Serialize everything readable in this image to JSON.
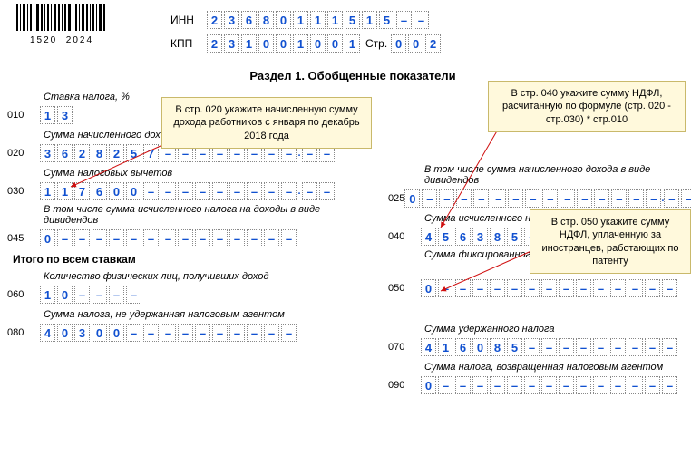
{
  "barcode": {
    "num_left": "1520",
    "num_right": "2024"
  },
  "header": {
    "inn_label": "ИНН",
    "kpp_label": "КПП",
    "str_label": "Стр.",
    "inn": [
      "2",
      "3",
      "6",
      "8",
      "0",
      "1",
      "1",
      "1",
      "5",
      "1",
      "5",
      "–",
      "–"
    ],
    "kpp": [
      "2",
      "3",
      "1",
      "0",
      "0",
      "1",
      "0",
      "0",
      "1"
    ],
    "page": [
      "0",
      "0",
      "2"
    ]
  },
  "section_title": "Раздел 1. Обобщенные показатели",
  "labels": {
    "rate": "Ставка налога, %",
    "l020": "Сумма начисленного дохода",
    "l025": "В том числе сумма начисленного дохода в виде дивидендов",
    "l030": "Сумма налоговых вычетов",
    "l040": "Сумма исчисленного налога",
    "l045": "В том числе сумма исчисленного налога на доходы в виде дивидендов",
    "l050": "Сумма фиксированного авансового платежа",
    "total": "Итого по всем ставкам",
    "l060": "Количество физических лиц, получивших доход",
    "l070": "Сумма удержанного налога",
    "l080": "Сумма налога, не удержанная налоговым агентом",
    "l090": "Сумма налога, возвращенная налоговым агентом"
  },
  "lines": {
    "n010": "010",
    "n020": "020",
    "n025": "025",
    "n030": "030",
    "n040": "040",
    "n045": "045",
    "n050": "050",
    "n060": "060",
    "n070": "070",
    "n080": "080",
    "n090": "090"
  },
  "values": {
    "v010": [
      "1",
      "3"
    ],
    "v020_int": [
      "3",
      "6",
      "2",
      "8",
      "2",
      "5",
      "7",
      "–",
      "–",
      "–",
      "–",
      "–",
      "–",
      "–",
      "–"
    ],
    "v020_dec": [
      "–",
      "–"
    ],
    "v025_int": [
      "0",
      "–",
      "–",
      "–",
      "–",
      "–",
      "–",
      "–",
      "–",
      "–",
      "–",
      "–",
      "–",
      "–",
      "–"
    ],
    "v025_dec": [
      "–",
      "–"
    ],
    "v030_int": [
      "1",
      "1",
      "7",
      "6",
      "0",
      "0",
      "–",
      "–",
      "–",
      "–",
      "–",
      "–",
      "–",
      "–",
      "–"
    ],
    "v030_dec": [
      "–",
      "–"
    ],
    "v040": [
      "4",
      "5",
      "6",
      "3",
      "8",
      "5",
      "–",
      "–",
      "–",
      "–",
      "–",
      "–",
      "–",
      "–",
      "–"
    ],
    "v045": [
      "0",
      "–",
      "–",
      "–",
      "–",
      "–",
      "–",
      "–",
      "–",
      "–",
      "–",
      "–",
      "–",
      "–",
      "–"
    ],
    "v050": [
      "0",
      "–",
      "–",
      "–",
      "–",
      "–",
      "–",
      "–",
      "–",
      "–",
      "–",
      "–",
      "–",
      "–",
      "–"
    ],
    "v060": [
      "1",
      "0",
      "–",
      "–",
      "–",
      "–"
    ],
    "v070": [
      "4",
      "1",
      "6",
      "0",
      "8",
      "5",
      "–",
      "–",
      "–",
      "–",
      "–",
      "–",
      "–",
      "–",
      "–"
    ],
    "v080": [
      "4",
      "0",
      "3",
      "0",
      "0",
      "–",
      "–",
      "–",
      "–",
      "–",
      "–",
      "–",
      "–",
      "–",
      "–"
    ],
    "v090": [
      "0",
      "–",
      "–",
      "–",
      "–",
      "–",
      "–",
      "–",
      "–",
      "–",
      "–",
      "–",
      "–",
      "–",
      "–"
    ]
  },
  "callouts": {
    "c1": "В стр. 020  укажите начисленную сумму дохода работников с января по декабрь 2018  года",
    "c2": "В стр. 040  укажите сумму НДФЛ, расчитанную по формуле (стр. 020 - стр.030) * стр.010",
    "c3": "В стр. 050  укажите сумму НДФЛ, уплаченную за иностранцев, работающих по патенту"
  },
  "styling": {
    "cell_border_color": "#888888",
    "value_color": "#1050d0",
    "callout_bg": "#fff9dc",
    "callout_border": "#c9b96b",
    "arrow_color": "#d01010"
  }
}
